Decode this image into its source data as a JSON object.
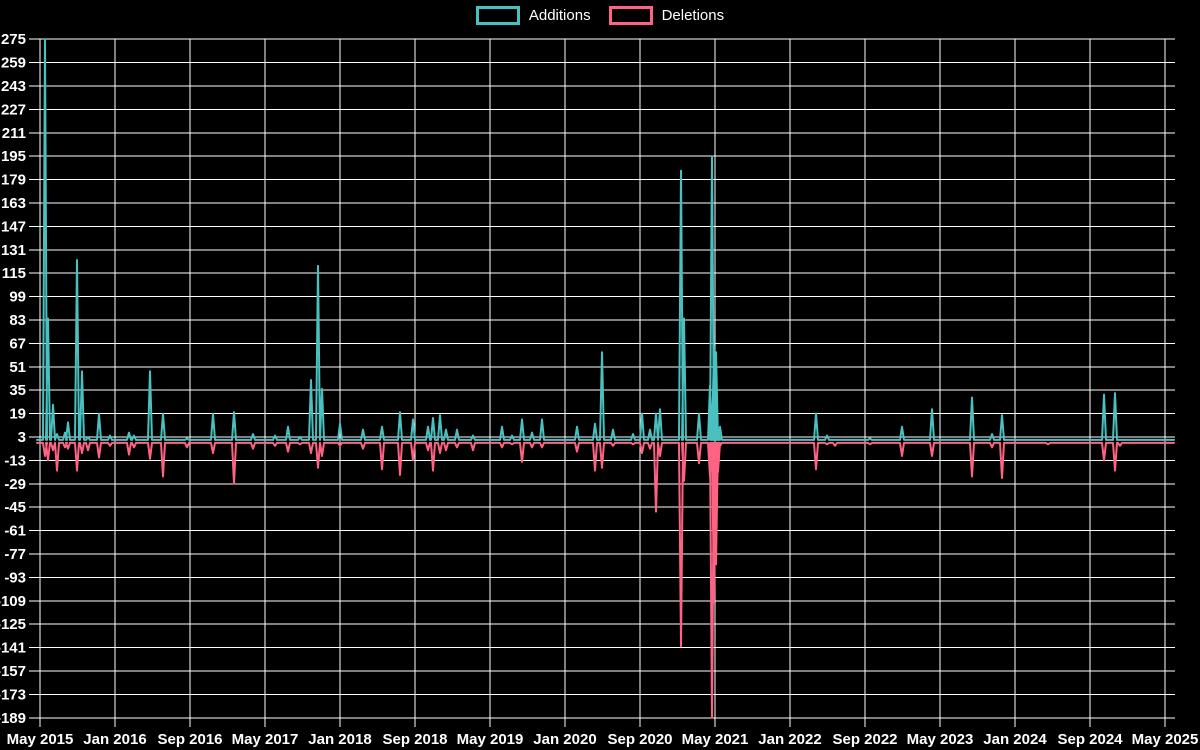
{
  "legend": {
    "note": "legend items mirror chart_data.series names"
  },
  "colors": {
    "background": "#000000",
    "grid": "#ffffff",
    "text": "#ffffff",
    "additions": "#4bc0c0",
    "deletions": "#ff6384"
  },
  "chart_data": {
    "type": "line",
    "title": "",
    "xlabel": "",
    "ylabel": "",
    "legend_position": "top",
    "grid": true,
    "x_axis": {
      "tick_labels": [
        "May 2015",
        "Jan 2016",
        "Sep 2016",
        "May 2017",
        "Jan 2018",
        "Sep 2018",
        "May 2019",
        "Jan 2020",
        "Sep 2020",
        "May 2021",
        "Jan 2022",
        "Sep 2022",
        "May 2023",
        "Jan 2024",
        "Sep 2024",
        "May 2025"
      ]
    },
    "y_axis": {
      "tick_labels": [
        275,
        259,
        243,
        227,
        211,
        195,
        179,
        163,
        147,
        131,
        115,
        99,
        83,
        67,
        51,
        35,
        19,
        3,
        -13,
        -29,
        -45,
        -61,
        -77,
        -93,
        -109,
        -125,
        -141,
        -157,
        -173,
        -189
      ],
      "min": -189,
      "max": 275,
      "step": 16
    },
    "series": [
      {
        "name": "Additions",
        "color": "#4bc0c0"
      },
      {
        "name": "Deletions",
        "color": "#ff6384"
      }
    ],
    "baseline": {
      "additions": 1,
      "deletions": -1
    },
    "events_format": [
      "x_px",
      "additions",
      "deletions",
      "approx_date"
    ],
    "events": [
      [
        45,
        275,
        -10,
        "2015-06"
      ],
      [
        48,
        84,
        -13,
        "2015-06"
      ],
      [
        53,
        25,
        -6,
        "2015-07"
      ],
      [
        57,
        5,
        -20,
        "2015-07"
      ],
      [
        65,
        6,
        -4,
        "2015-08"
      ],
      [
        68,
        13,
        -5,
        "2015-08"
      ],
      [
        77,
        124,
        -20,
        "2015-09"
      ],
      [
        82,
        48,
        -8,
        "2015-09"
      ],
      [
        88,
        3,
        -6,
        "2015-10"
      ],
      [
        99,
        19,
        -11,
        "2015-11"
      ],
      [
        110,
        4,
        -3,
        "2015-12"
      ],
      [
        129,
        6,
        -9,
        "2016-02"
      ],
      [
        134,
        4,
        -4,
        "2016-03"
      ],
      [
        150,
        48,
        -12,
        "2016-05"
      ],
      [
        163,
        19,
        -24,
        "2016-06"
      ],
      [
        187,
        2,
        -4,
        "2016-09"
      ],
      [
        213,
        19,
        -8,
        "2016-11"
      ],
      [
        234,
        20,
        -29,
        "2017-01"
      ],
      [
        253,
        5,
        -5,
        "2017-03"
      ],
      [
        275,
        4,
        -3,
        "2017-06"
      ],
      [
        288,
        10,
        -7,
        "2017-07"
      ],
      [
        300,
        3,
        -2,
        "2017-08"
      ],
      [
        311,
        42,
        -8,
        "2017-10"
      ],
      [
        318,
        120,
        -18,
        "2017-10"
      ],
      [
        322,
        36,
        -10,
        "2017-11"
      ],
      [
        340,
        12,
        -3,
        "2018-01"
      ],
      [
        363,
        8,
        -5,
        "2018-03"
      ],
      [
        382,
        10,
        -19,
        "2018-05"
      ],
      [
        400,
        20,
        -23,
        "2018-07"
      ],
      [
        413,
        15,
        -13,
        "2018-08"
      ],
      [
        428,
        10,
        -6,
        "2018-10"
      ],
      [
        433,
        16,
        -20,
        "2018-11"
      ],
      [
        440,
        18,
        -8,
        "2018-11"
      ],
      [
        446,
        8,
        -6,
        "2018-12"
      ],
      [
        457,
        8,
        -4,
        "2019-01"
      ],
      [
        473,
        4,
        -6,
        "2019-03"
      ],
      [
        502,
        10,
        -4,
        "2019-06"
      ],
      [
        512,
        4,
        -2,
        "2019-07"
      ],
      [
        522,
        15,
        -14,
        "2019-08"
      ],
      [
        532,
        6,
        -4,
        "2019-09"
      ],
      [
        542,
        15,
        -4,
        "2019-10"
      ],
      [
        577,
        10,
        -7,
        "2020-02"
      ],
      [
        595,
        12,
        -20,
        "2020-04"
      ],
      [
        602,
        61,
        -18,
        "2020-05"
      ],
      [
        613,
        8,
        -3,
        "2020-06"
      ],
      [
        633,
        5,
        -2,
        "2020-08"
      ],
      [
        642,
        19,
        -8,
        "2020-09"
      ],
      [
        650,
        8,
        -5,
        "2020-10"
      ],
      [
        656,
        19,
        -48,
        "2020-10"
      ],
      [
        660,
        22,
        -10,
        "2020-11"
      ],
      [
        681,
        185,
        -140,
        "2021-01"
      ],
      [
        684,
        84,
        -27,
        "2021-01"
      ],
      [
        699,
        19,
        -15,
        "2021-03"
      ],
      [
        710,
        38,
        -24,
        "2021-04"
      ],
      [
        712,
        195,
        -189,
        "2021-04"
      ],
      [
        714,
        65,
        -110,
        "2021-05"
      ],
      [
        716,
        61,
        -84,
        "2021-05"
      ],
      [
        718,
        9,
        -21,
        "2021-05"
      ],
      [
        720,
        10,
        -3,
        "2021-05"
      ],
      [
        816,
        19,
        -19,
        "2022-03"
      ],
      [
        827,
        4,
        -2,
        "2022-05"
      ],
      [
        835,
        0,
        -3,
        "2022-05"
      ],
      [
        870,
        2,
        -2,
        "2022-09"
      ],
      [
        902,
        10,
        -10,
        "2023-01"
      ],
      [
        932,
        22,
        -10,
        "2023-04"
      ],
      [
        972,
        30,
        -24,
        "2023-08"
      ],
      [
        992,
        5,
        -4,
        "2023-10"
      ],
      [
        1002,
        18,
        -25,
        "2023-11"
      ],
      [
        1048,
        0,
        -2,
        "2024-04"
      ],
      [
        1104,
        32,
        -13,
        "2024-10"
      ],
      [
        1115,
        33,
        -20,
        "2024-11"
      ],
      [
        1120,
        0,
        -3,
        "2024-12"
      ]
    ]
  }
}
